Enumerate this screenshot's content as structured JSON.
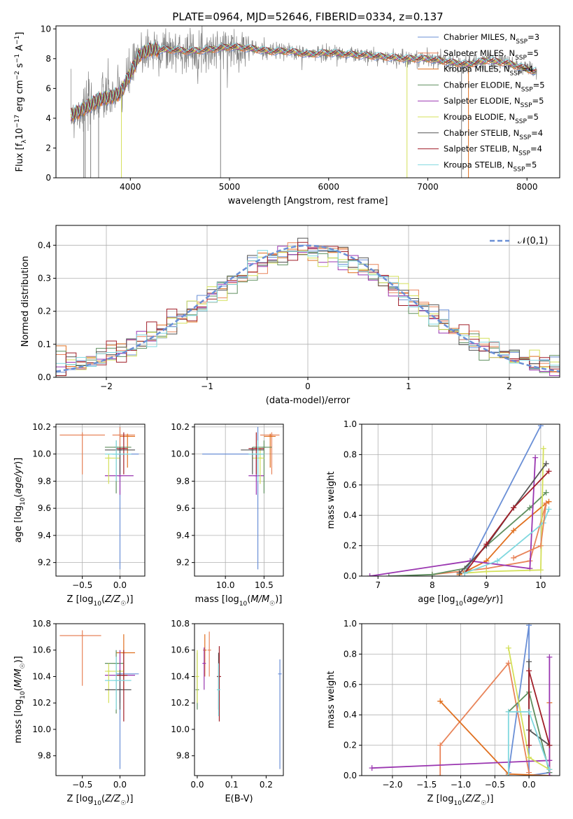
{
  "figure": {
    "title": "PLATE=0964, MJD=52646, FIBERID=0334, z=0.137"
  },
  "series_styles": [
    {
      "name": "Chabrier MILES",
      "nssp": "3",
      "color": "#6a8fd6"
    },
    {
      "name": "Salpeter MILES",
      "nssp": "5",
      "color": "#e8845a"
    },
    {
      "name": "Kroupa MILES",
      "nssp": "4",
      "color": "#e07020"
    },
    {
      "name": "Chabrier ELODIE",
      "nssp": "5",
      "color": "#5f8f5f"
    },
    {
      "name": "Salpeter ELODIE",
      "nssp": "5",
      "color": "#9a36b0"
    },
    {
      "name": "Kroupa ELODIE",
      "nssp": "5",
      "color": "#d4e05a"
    },
    {
      "name": "Chabrier STELIB",
      "nssp": "4",
      "color": "#555555"
    },
    {
      "name": "Salpeter STELIB",
      "nssp": "4",
      "color": "#a01e28"
    },
    {
      "name": "Kroupa STELIB",
      "nssp": "5",
      "color": "#7fd8df"
    }
  ],
  "chart_data": [
    {
      "id": "spectrum",
      "type": "line",
      "xlabel": "wavelength [Angstrom, rest frame]",
      "ylabel": "Flux [f_λ10^-17 erg cm^-2 s^-1 A^-1]",
      "xlim": [
        3250,
        8330
      ],
      "ylim": [
        0,
        10.2
      ],
      "xticks": [
        4000,
        5000,
        6000,
        7000,
        8000
      ],
      "yticks": [
        0,
        2,
        4,
        6,
        8,
        10
      ],
      "data_color": "#808080",
      "continuum": {
        "x": [
          3400,
          3500,
          3600,
          3700,
          3800,
          3900,
          4000,
          4100,
          4200,
          4400,
          4600,
          4800,
          5000,
          5200,
          5400,
          5600,
          5800,
          6000,
          6200,
          6400,
          6600,
          6800,
          7000,
          7200,
          7400,
          7600,
          7800,
          8000,
          8100
        ],
        "y": [
          4.2,
          4.5,
          4.9,
          5.3,
          5.4,
          5.7,
          7.0,
          8.3,
          8.6,
          8.6,
          8.5,
          8.6,
          8.8,
          8.7,
          8.5,
          8.5,
          8.3,
          8.4,
          8.3,
          8.2,
          8.1,
          8.0,
          8.0,
          7.8,
          7.6,
          7.9,
          7.7,
          7.3,
          7.1
        ]
      },
      "legend_loc": "right"
    },
    {
      "id": "residuals",
      "type": "histogram",
      "xlabel": "(data-model)/error",
      "ylabel": "Normed distribution",
      "xlim": [
        -2.5,
        2.5
      ],
      "ylim": [
        0,
        0.46
      ],
      "xticks": [
        -2,
        -1,
        0,
        1,
        2
      ],
      "yticks": [
        0,
        0.1,
        0.2,
        0.3,
        0.4
      ],
      "grid": true,
      "normal_label": "𝒩(0,1)",
      "normal_color": "#6a8fd6",
      "legend_loc": "upper right"
    },
    {
      "id": "age_vs_Z",
      "type": "errorbar",
      "xlabel": "Z [log10(Z/Z☉)]",
      "ylabel": "age [log10(age/yr)]",
      "xlim": [
        -0.85,
        0.33
      ],
      "ylim": [
        9.1,
        10.22
      ],
      "xticks": [
        -0.5,
        0.0
      ],
      "yticks": [
        9.2,
        9.4,
        9.6,
        9.8,
        10.0,
        10.2
      ],
      "grid": true,
      "points": [
        {
          "s": 0,
          "x": 0.0,
          "y": 10.0,
          "xe": [
            -0.1,
            0.25
          ],
          "ye": [
            9.15,
            10.2
          ]
        },
        {
          "s": 1,
          "x": 0.0,
          "y": 10.14,
          "xe": [
            -0.1,
            0.2
          ],
          "ye": [
            9.85,
            10.2
          ]
        },
        {
          "s": 2,
          "x": 0.1,
          "y": 10.13,
          "xe": [
            0.0,
            0.2
          ],
          "ye": [
            9.9,
            10.15
          ]
        },
        {
          "s": 3,
          "x": -0.05,
          "y": 10.05,
          "xe": [
            -0.2,
            0.15
          ],
          "ye": [
            9.71,
            10.1
          ]
        },
        {
          "s": 4,
          "x": 0.0,
          "y": 9.84,
          "xe": [
            -0.2,
            0.18
          ],
          "ye": [
            9.7,
            10.0
          ]
        },
        {
          "s": 5,
          "x": -0.15,
          "y": 9.97,
          "xe": [
            -0.2,
            0.0
          ],
          "ye": [
            9.78,
            10.0
          ]
        },
        {
          "s": 6,
          "x": 0.0,
          "y": 10.03,
          "xe": [
            -0.2,
            0.2
          ],
          "ye": [
            9.85,
            10.05
          ]
        },
        {
          "s": 7,
          "x": 0.05,
          "y": 10.04,
          "xe": [
            -0.05,
            0.1
          ],
          "ye": [
            9.85,
            10.16
          ]
        },
        {
          "s": 8,
          "x": -0.05,
          "y": 10.0,
          "xe": [
            -0.2,
            0.15
          ],
          "ye": [
            9.8,
            10.1
          ]
        },
        {
          "s": 1,
          "x": -0.5,
          "y": 10.14,
          "xe": [
            -0.8,
            -0.2
          ],
          "ye": [
            9.85,
            10.16
          ]
        }
      ]
    },
    {
      "id": "age_vs_mass",
      "type": "errorbar",
      "xlabel": "mass [log10(M/M☉)]",
      "ylabel": "",
      "xlim": [
        9.6,
        10.75
      ],
      "ylim": [
        9.1,
        10.22
      ],
      "xticks": [
        10.0,
        10.5
      ],
      "yticks": [
        9.2,
        9.4,
        9.6,
        9.8,
        10.0,
        10.2
      ],
      "grid": true,
      "points": [
        {
          "s": 0,
          "x": 10.42,
          "y": 10.0,
          "xe": [
            9.7,
            10.5
          ],
          "ye": [
            9.15,
            10.2
          ]
        },
        {
          "s": 1,
          "x": 10.6,
          "y": 10.14,
          "xe": [
            10.45,
            10.7
          ],
          "ye": [
            9.85,
            10.16
          ]
        },
        {
          "s": 2,
          "x": 10.58,
          "y": 10.13,
          "xe": [
            10.5,
            10.65
          ],
          "ye": [
            9.9,
            10.15
          ]
        },
        {
          "s": 3,
          "x": 10.5,
          "y": 10.05,
          "xe": [
            10.35,
            10.6
          ],
          "ye": [
            9.71,
            10.1
          ]
        },
        {
          "s": 4,
          "x": 10.4,
          "y": 9.84,
          "xe": [
            10.3,
            10.5
          ],
          "ye": [
            9.7,
            10.0
          ]
        },
        {
          "s": 5,
          "x": 10.45,
          "y": 9.97,
          "xe": [
            10.35,
            10.5
          ],
          "ye": [
            9.78,
            10.05
          ]
        },
        {
          "s": 6,
          "x": 10.35,
          "y": 10.03,
          "xe": [
            10.2,
            10.5
          ],
          "ye": [
            9.85,
            10.05
          ]
        },
        {
          "s": 7,
          "x": 10.4,
          "y": 10.04,
          "xe": [
            10.3,
            10.5
          ],
          "ye": [
            9.85,
            10.16
          ]
        },
        {
          "s": 8,
          "x": 10.42,
          "y": 10.0,
          "xe": [
            10.3,
            10.5
          ],
          "ye": [
            9.8,
            10.1
          ]
        }
      ]
    },
    {
      "id": "weight_vs_age",
      "type": "line",
      "xlabel": "age [log10(age/yr)]",
      "ylabel": "mass weight",
      "xlim": [
        6.7,
        10.35
      ],
      "ylim": [
        0,
        1.0
      ],
      "xticks": [
        7,
        8,
        9,
        10
      ],
      "yticks": [
        0.0,
        0.2,
        0.4,
        0.6,
        0.8,
        1.0
      ],
      "grid": true,
      "series": [
        {
          "s": 0,
          "x": [
            8.6,
            10.0
          ],
          "y": [
            0.02,
            0.99
          ]
        },
        {
          "s": 1,
          "x": [
            8.0,
            9.0,
            9.8,
            10.1
          ],
          "y": [
            0.01,
            0.05,
            0.1,
            0.48
          ]
        },
        {
          "s": 2,
          "x": [
            8.5,
            9.0,
            9.5,
            10.1,
            10.15
          ],
          "y": [
            0.01,
            0.1,
            0.3,
            0.48,
            0.49
          ]
        },
        {
          "s": 3,
          "x": [
            7.2,
            8.0,
            8.6,
            9.0,
            9.8,
            10.1
          ],
          "y": [
            0.0,
            0.01,
            0.05,
            0.2,
            0.45,
            0.55
          ]
        },
        {
          "s": 4,
          "x": [
            6.85,
            8.7,
            9.8,
            9.9
          ],
          "y": [
            0.0,
            0.1,
            0.05,
            0.78
          ]
        },
        {
          "s": 5,
          "x": [
            8.6,
            9.0,
            10.0,
            10.05
          ],
          "y": [
            0.02,
            0.03,
            0.04,
            0.84
          ]
        },
        {
          "s": 6,
          "x": [
            8.5,
            9.0,
            9.5,
            10.1
          ],
          "y": [
            0.02,
            0.2,
            0.45,
            0.74
          ]
        },
        {
          "s": 7,
          "x": [
            8.6,
            9.0,
            9.5,
            10.15
          ],
          "y": [
            0.02,
            0.21,
            0.45,
            0.69
          ]
        },
        {
          "s": 8,
          "x": [
            8.6,
            9.2,
            10.05,
            10.15
          ],
          "y": [
            0.02,
            0.1,
            0.35,
            0.44
          ]
        },
        {
          "s": 1,
          "x": [
            9.5,
            10.0,
            10.1
          ],
          "y": [
            0.12,
            0.2,
            0.48
          ]
        }
      ]
    },
    {
      "id": "mass_vs_Z",
      "type": "errorbar",
      "xlabel": "Z [log10(Z/Z☉)]",
      "ylabel": "mass [log10(M/M☉)]",
      "xlim": [
        -0.85,
        0.33
      ],
      "ylim": [
        9.65,
        10.8
      ],
      "xticks": [
        -0.5,
        0.0
      ],
      "yticks": [
        9.8,
        10.0,
        10.2,
        10.4,
        10.6,
        10.8
      ],
      "grid": false,
      "points": [
        {
          "s": 0,
          "x": 0.0,
          "y": 10.42,
          "xe": [
            -0.05,
            0.25
          ],
          "ye": [
            9.7,
            10.45
          ]
        },
        {
          "s": 1,
          "x": -0.5,
          "y": 10.71,
          "xe": [
            -0.8,
            -0.25
          ],
          "ye": [
            10.33,
            10.75
          ]
        },
        {
          "s": 2,
          "x": 0.05,
          "y": 10.58,
          "xe": [
            -0.05,
            0.2
          ],
          "ye": [
            10.3,
            10.72
          ]
        },
        {
          "s": 3,
          "x": -0.05,
          "y": 10.5,
          "xe": [
            -0.2,
            0.05
          ],
          "ye": [
            10.12,
            10.6
          ]
        },
        {
          "s": 4,
          "x": 0.0,
          "y": 10.41,
          "xe": [
            -0.2,
            0.2
          ],
          "ye": [
            10.2,
            10.6
          ]
        },
        {
          "s": 5,
          "x": -0.15,
          "y": 10.44,
          "xe": [
            -0.2,
            0.05
          ],
          "ye": [
            10.2,
            10.5
          ]
        },
        {
          "s": 6,
          "x": 0.0,
          "y": 10.3,
          "xe": [
            -0.2,
            0.15
          ],
          "ye": [
            10.15,
            10.45
          ]
        },
        {
          "s": 7,
          "x": 0.05,
          "y": 10.41,
          "xe": [
            -0.05,
            0.1
          ],
          "ye": [
            10.06,
            10.6
          ]
        },
        {
          "s": 8,
          "x": -0.05,
          "y": 10.37,
          "xe": [
            -0.2,
            0.15
          ],
          "ye": [
            10.15,
            10.55
          ]
        }
      ]
    },
    {
      "id": "mass_vs_EBV",
      "type": "errorbar",
      "xlabel": "E(B-V)",
      "ylabel": "",
      "xlim": [
        -0.008,
        0.25
      ],
      "ylim": [
        9.65,
        10.8
      ],
      "xticks": [
        0.0,
        0.1,
        0.2
      ],
      "yticks": [
        9.8,
        10.0,
        10.2,
        10.4,
        10.6,
        10.8
      ],
      "grid": false,
      "points": [
        {
          "s": 0,
          "x": 0.24,
          "y": 10.42,
          "ye": [
            9.7,
            10.53
          ]
        },
        {
          "s": 1,
          "x": 0.035,
          "y": 10.6,
          "ye": [
            10.4,
            10.74
          ]
        },
        {
          "s": 2,
          "x": 0.022,
          "y": 10.6,
          "ye": [
            10.4,
            10.72
          ]
        },
        {
          "s": 3,
          "x": 0.0,
          "y": 10.3,
          "ye": [
            10.15,
            10.58
          ]
        },
        {
          "s": 4,
          "x": 0.02,
          "y": 10.5,
          "ye": [
            10.3,
            10.62
          ]
        },
        {
          "s": 5,
          "x": 0.0,
          "y": 10.4,
          "ye": [
            10.2,
            10.6
          ]
        },
        {
          "s": 6,
          "x": 0.062,
          "y": 10.4,
          "ye": [
            10.15,
            10.58
          ]
        },
        {
          "s": 7,
          "x": 0.064,
          "y": 10.4,
          "ye": [
            10.06,
            10.63
          ]
        },
        {
          "s": 8,
          "x": 0.062,
          "y": 10.3,
          "ye": [
            10.1,
            10.5
          ]
        }
      ]
    },
    {
      "id": "weight_vs_Z",
      "type": "line",
      "xlabel": "Z [log10(Z/Z☉)]",
      "ylabel": "mass weight",
      "xlim": [
        -2.45,
        0.45
      ],
      "ylim": [
        0,
        1.0
      ],
      "xticks": [
        -2.0,
        -1.5,
        -1.0,
        -0.5,
        0.0
      ],
      "yticks": [
        0.0,
        0.2,
        0.4,
        0.6,
        0.8,
        1.0
      ],
      "grid": true,
      "series": [
        {
          "s": 0,
          "x": [
            -0.3,
            0.0,
            0.0,
            0.3
          ],
          "y": [
            0.02,
            0.99,
            0.0,
            0.02
          ]
        },
        {
          "s": 1,
          "x": [
            -1.3,
            -1.3,
            -0.3,
            0.0
          ],
          "y": [
            0.0,
            0.2,
            0.74,
            0.02
          ]
        },
        {
          "s": 2,
          "x": [
            -1.3,
            -0.3,
            0.3,
            0.3
          ],
          "y": [
            0.49,
            0.01,
            0.0,
            0.48
          ]
        },
        {
          "s": 3,
          "x": [
            -0.3,
            0.0,
            0.3
          ],
          "y": [
            0.42,
            0.55,
            0.02
          ]
        },
        {
          "s": 4,
          "x": [
            -2.3,
            0.3,
            0.3,
            0.3
          ],
          "y": [
            0.05,
            0.1,
            0.0,
            0.78
          ]
        },
        {
          "s": 5,
          "x": [
            -0.3,
            0.0,
            0.3
          ],
          "y": [
            0.84,
            0.12,
            0.04
          ]
        },
        {
          "s": 6,
          "x": [
            0.0,
            0.0,
            0.3
          ],
          "y": [
            0.75,
            0.3,
            0.2
          ]
        },
        {
          "s": 7,
          "x": [
            0.0,
            0.0,
            0.3
          ],
          "y": [
            0.2,
            0.69,
            0.2
          ]
        },
        {
          "s": 8,
          "x": [
            -0.3,
            -0.3,
            0.0,
            0.3
          ],
          "y": [
            0.0,
            0.42,
            0.42,
            0.04
          ]
        }
      ]
    }
  ]
}
